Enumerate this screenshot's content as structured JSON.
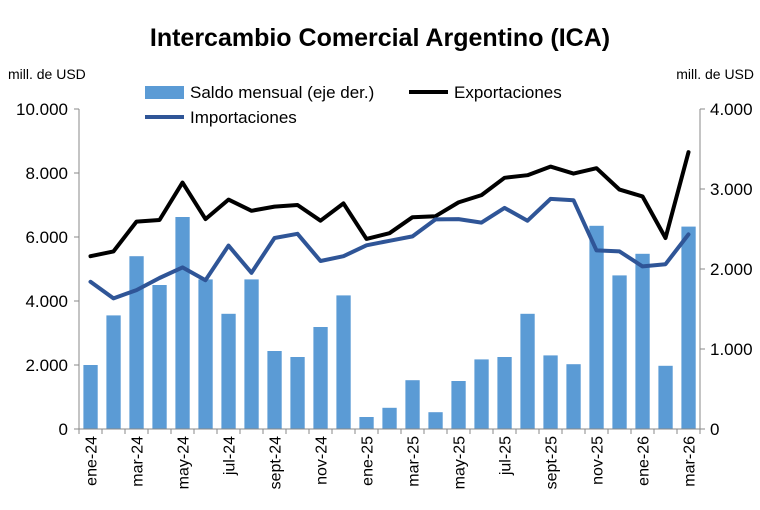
{
  "chart_data": {
    "type": "bar+line",
    "title": "Intercambio Comercial Argentino (ICA)",
    "ylabel_left": "mill. de USD",
    "ylabel_right": "mill. de USD",
    "ylim_left": [
      0,
      10000
    ],
    "ylim_right": [
      0,
      4000
    ],
    "yticks_left": [
      "0",
      "2.000",
      "4.000",
      "6.000",
      "8.000",
      "10.000"
    ],
    "yticks_right": [
      "0",
      "1.000",
      "2.000",
      "3.000",
      "4.000"
    ],
    "yticks_left_values": [
      0,
      2000,
      4000,
      6000,
      8000,
      10000
    ],
    "yticks_right_values": [
      0,
      1000,
      2000,
      3000,
      4000
    ],
    "categories": [
      "ene-24",
      "feb-24",
      "mar-24",
      "abr-24",
      "may-24",
      "jun-24",
      "jul-24",
      "ago-24",
      "sept-24",
      "oct-24",
      "nov-24",
      "dic-24",
      "ene-25",
      "feb-25",
      "mar-25",
      "abr-25",
      "may-25",
      "jun-25",
      "jul-25",
      "ago-25",
      "sept-25",
      "oct-25",
      "nov-25",
      "dic-25",
      "ene-26",
      "feb-26",
      "mar-26"
    ],
    "x_tick_labels": [
      "ene-24",
      "",
      "mar-24",
      "",
      "may-24",
      "",
      "jul-24",
      "",
      "sept-24",
      "",
      "nov-24",
      "",
      "ene-25",
      "",
      "mar-25",
      "",
      "may-25",
      "",
      "jul-25",
      "",
      "sept-25",
      "",
      "nov-25",
      "",
      "ene-26",
      "",
      "mar-26"
    ],
    "legend_position": "top",
    "series": [
      {
        "name": "Saldo mensual (eje der.)",
        "kind": "bar",
        "axis": "right",
        "color": "#5B9BD5",
        "values": [
          800,
          1420,
          2160,
          1800,
          2650,
          1870,
          1440,
          1870,
          975,
          900,
          1275,
          1670,
          150,
          265,
          610,
          210,
          600,
          870,
          900,
          1440,
          920,
          810,
          2540,
          1920,
          2190,
          790,
          2530
        ]
      },
      {
        "name": "Exportaciones",
        "kind": "line",
        "axis": "left",
        "color": "#000000",
        "values": [
          5400,
          5550,
          6480,
          6530,
          7700,
          6560,
          7170,
          6820,
          6950,
          7000,
          6510,
          7050,
          5940,
          6120,
          6620,
          6650,
          7080,
          7310,
          7850,
          7930,
          8200,
          7980,
          8150,
          7480,
          7270,
          5970,
          8650
        ]
      },
      {
        "name": "Importaciones",
        "kind": "line",
        "axis": "left",
        "color": "#2F5597",
        "values": [
          4600,
          4080,
          4340,
          4720,
          5050,
          4650,
          5730,
          4880,
          5970,
          6100,
          5250,
          5400,
          5740,
          5880,
          6020,
          6550,
          6560,
          6450,
          6910,
          6510,
          7190,
          7150,
          5580,
          5550,
          5080,
          5150,
          6080
        ]
      }
    ]
  }
}
